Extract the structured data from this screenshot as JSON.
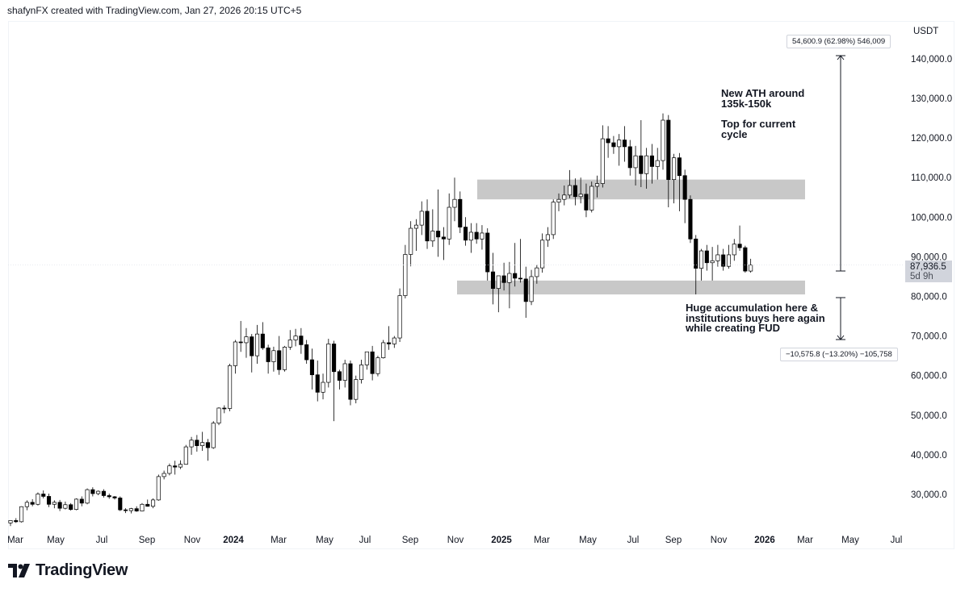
{
  "header": {
    "credit": "shafynFX created with TradingView.com, Jan 27, 2026 20:15 UTC+5"
  },
  "brand": {
    "name": "TradingView",
    "logo_icon": "tradingview-logo-icon"
  },
  "price_scale": {
    "currency": "USDT",
    "current_price": "87,936.5",
    "countdown": "5d 9h"
  },
  "annotations": {
    "ath_note": "New ATH around\n135k-150k",
    "top_note": "Top for current\ncycle",
    "accumulation_note": "Huge accumulation here &\ninstitutions buys here again\nwhile creating FUD",
    "measure_up": "54,600.9 (62.98%) 546,009",
    "measure_down": "−10,575.8 (−13.20%) −105,758"
  },
  "colors": {
    "up_body": "#ffffff",
    "down_body": "#000000",
    "wick": "#000000",
    "zone": "#c8c8c8",
    "grid": "#ffffff"
  },
  "chart_data": {
    "type": "candlestick",
    "interval": "weekly",
    "ylim": [
      22000,
      146000
    ],
    "y_ticks": [
      30000,
      40000,
      50000,
      60000,
      70000,
      80000,
      90000,
      100000,
      110000,
      120000,
      130000,
      140000
    ],
    "y_tick_labels": [
      "30,000.0",
      "40,000.0",
      "50,000.0",
      "60,000.0",
      "70,000.0",
      "80,000.0",
      "90,000.0",
      "100,000.0",
      "110,000.0",
      "120,000.0",
      "130,000.0",
      "140,000.0"
    ],
    "x_tick_labels": [
      {
        "label": "Mar",
        "bold": false
      },
      {
        "label": "May",
        "bold": false
      },
      {
        "label": "Jul",
        "bold": false
      },
      {
        "label": "Sep",
        "bold": false
      },
      {
        "label": "Nov",
        "bold": false
      },
      {
        "label": "2024",
        "bold": true
      },
      {
        "label": "Mar",
        "bold": false
      },
      {
        "label": "May",
        "bold": false
      },
      {
        "label": "Jul",
        "bold": false
      },
      {
        "label": "Sep",
        "bold": false
      },
      {
        "label": "Nov",
        "bold": false
      },
      {
        "label": "2025",
        "bold": true
      },
      {
        "label": "Mar",
        "bold": false
      },
      {
        "label": "May",
        "bold": false
      },
      {
        "label": "Jul",
        "bold": false
      },
      {
        "label": "Sep",
        "bold": false
      },
      {
        "label": "Nov",
        "bold": false
      },
      {
        "label": "2026",
        "bold": true
      },
      {
        "label": "Mar",
        "bold": false
      },
      {
        "label": "May",
        "bold": false
      },
      {
        "label": "Jul",
        "bold": false
      }
    ],
    "zones": [
      {
        "name": "resistance-zone",
        "from": 104500,
        "to": 109500
      },
      {
        "name": "support-zone",
        "from": 80500,
        "to": 84000
      }
    ],
    "candles": [
      [
        22800,
        23500,
        22000,
        23400
      ],
      [
        23400,
        24000,
        22800,
        23100
      ],
      [
        23100,
        27000,
        22900,
        26900
      ],
      [
        26900,
        28500,
        26000,
        28000
      ],
      [
        28000,
        28800,
        27000,
        27500
      ],
      [
        27500,
        30500,
        27200,
        30100
      ],
      [
        30100,
        31000,
        29000,
        29500
      ],
      [
        29500,
        30200,
        26800,
        27500
      ],
      [
        27500,
        28500,
        26500,
        28000
      ],
      [
        28000,
        28600,
        25800,
        26500
      ],
      [
        26500,
        28200,
        26200,
        27400
      ],
      [
        27400,
        27800,
        25900,
        26200
      ],
      [
        26200,
        29000,
        26000,
        28800
      ],
      [
        28800,
        29500,
        27000,
        27800
      ],
      [
        27800,
        31500,
        27500,
        31200
      ],
      [
        31200,
        31800,
        29500,
        30200
      ],
      [
        30200,
        31000,
        29800,
        30800
      ],
      [
        30800,
        31300,
        29200,
        29700
      ],
      [
        29700,
        30200,
        28900,
        29400
      ],
      [
        29400,
        29600,
        28700,
        29100
      ],
      [
        29100,
        29500,
        25800,
        26100
      ],
      [
        26100,
        26500,
        25300,
        25900
      ],
      [
        25900,
        26600,
        25200,
        26400
      ],
      [
        26400,
        27000,
        25600,
        25800
      ],
      [
        25800,
        27800,
        25700,
        27500
      ],
      [
        27500,
        28700,
        26900,
        27000
      ],
      [
        27000,
        29000,
        26500,
        28600
      ],
      [
        28600,
        35000,
        28400,
        34500
      ],
      [
        34500,
        36000,
        33800,
        35300
      ],
      [
        35300,
        37800,
        34800,
        37200
      ],
      [
        37200,
        38500,
        35000,
        36900
      ],
      [
        36900,
        38600,
        36400,
        37600
      ],
      [
        37600,
        42500,
        37500,
        42000
      ],
      [
        42000,
        44500,
        40000,
        43700
      ],
      [
        43700,
        45000,
        40800,
        42300
      ],
      [
        42300,
        45800,
        41000,
        43100
      ],
      [
        43100,
        44000,
        38500,
        41800
      ],
      [
        41800,
        48500,
        41500,
        48000
      ],
      [
        48000,
        52000,
        47500,
        51800
      ],
      [
        51800,
        52500,
        50500,
        51700
      ],
      [
        51700,
        63000,
        51000,
        62500
      ],
      [
        62500,
        69000,
        60500,
        68500
      ],
      [
        68500,
        73800,
        66000,
        68300
      ],
      [
        68300,
        72000,
        64500,
        69800
      ],
      [
        69800,
        70500,
        60800,
        65000
      ],
      [
        65000,
        72800,
        63000,
        70500
      ],
      [
        70500,
        73500,
        66500,
        67000
      ],
      [
        67000,
        67800,
        60500,
        63500
      ],
      [
        63500,
        67300,
        61000,
        66300
      ],
      [
        66300,
        70000,
        60200,
        61500
      ],
      [
        61500,
        67500,
        61000,
        67200
      ],
      [
        67200,
        71500,
        66500,
        69000
      ],
      [
        69000,
        71800,
        67400,
        70000
      ],
      [
        70000,
        72000,
        65500,
        67800
      ],
      [
        67800,
        69000,
        63000,
        64000
      ],
      [
        64000,
        66800,
        56500,
        60200
      ],
      [
        60200,
        63800,
        53500,
        55800
      ],
      [
        55800,
        60500,
        54000,
        58300
      ],
      [
        58300,
        69300,
        57000,
        68000
      ],
      [
        68000,
        68800,
        48500,
        61000
      ],
      [
        61000,
        61500,
        56500,
        58800
      ],
      [
        58800,
        64000,
        57000,
        63000
      ],
      [
        63000,
        63800,
        52500,
        54000
      ],
      [
        54000,
        60000,
        53000,
        59000
      ],
      [
        59000,
        64000,
        58000,
        62700
      ],
      [
        62700,
        66000,
        61500,
        66000
      ],
      [
        66000,
        67500,
        58800,
        60500
      ],
      [
        60500,
        65000,
        59800,
        64500
      ],
      [
        64500,
        69000,
        64300,
        68300
      ],
      [
        68300,
        72500,
        66500,
        68000
      ],
      [
        68000,
        70000,
        67000,
        69500
      ],
      [
        69500,
        82000,
        68500,
        80200
      ],
      [
        80200,
        93000,
        79500,
        90600
      ],
      [
        90600,
        99000,
        87600,
        97200
      ],
      [
        97200,
        99500,
        91500,
        98000
      ],
      [
        98000,
        104000,
        95500,
        101500
      ],
      [
        101500,
        104500,
        92000,
        94000
      ],
      [
        94000,
        102000,
        92500,
        96500
      ],
      [
        96500,
        107000,
        90000,
        95000
      ],
      [
        95000,
        97500,
        89200,
        94500
      ],
      [
        94500,
        106000,
        93000,
        102500
      ],
      [
        102500,
        110000,
        99000,
        104500
      ],
      [
        104500,
        106500,
        96000,
        97500
      ],
      [
        97500,
        100000,
        92800,
        94200
      ],
      [
        94200,
        98500,
        91000,
        96200
      ],
      [
        96200,
        98500,
        93300,
        94500
      ],
      [
        94500,
        98000,
        91800,
        96000
      ],
      [
        96000,
        97200,
        84000,
        86200
      ],
      [
        86200,
        91000,
        78000,
        82000
      ],
      [
        82000,
        85000,
        76000,
        85200
      ],
      [
        85200,
        88500,
        81500,
        83500
      ],
      [
        83500,
        88700,
        77000,
        85800
      ],
      [
        85800,
        93500,
        82500,
        84600
      ],
      [
        84600,
        94500,
        83500,
        84400
      ],
      [
        84400,
        87500,
        74600,
        78700
      ],
      [
        78700,
        86700,
        77800,
        85000
      ],
      [
        85000,
        88000,
        83200,
        87200
      ],
      [
        87200,
        95900,
        86000,
        94200
      ],
      [
        94200,
        97500,
        92500,
        95600
      ],
      [
        95600,
        104500,
        94500,
        103800
      ],
      [
        103800,
        106000,
        101500,
        104500
      ],
      [
        104500,
        108000,
        103000,
        105600
      ],
      [
        105600,
        111900,
        104800,
        108000
      ],
      [
        108000,
        109800,
        103000,
        105200
      ],
      [
        105200,
        110000,
        103500,
        105800
      ],
      [
        105800,
        108500,
        100000,
        101800
      ],
      [
        101800,
        109000,
        101200,
        107800
      ],
      [
        107800,
        110500,
        105000,
        108500
      ],
      [
        108500,
        123200,
        107500,
        119800
      ],
      [
        119800,
        123000,
        115000,
        118800
      ],
      [
        118800,
        120500,
        116000,
        117800
      ],
      [
        117800,
        121000,
        113000,
        119500
      ],
      [
        119500,
        123000,
        114000,
        117800
      ],
      [
        117800,
        119500,
        110500,
        112500
      ],
      [
        112500,
        118000,
        108000,
        115500
      ],
      [
        115500,
        124500,
        107600,
        111000
      ],
      [
        111000,
        117500,
        107200,
        115500
      ],
      [
        115500,
        118500,
        108500,
        112800
      ],
      [
        112800,
        117500,
        109500,
        114300
      ],
      [
        114300,
        126200,
        112000,
        124500
      ],
      [
        124500,
        125800,
        102500,
        109500
      ],
      [
        109500,
        116000,
        103500,
        115000
      ],
      [
        115000,
        116200,
        101500,
        110500
      ],
      [
        110500,
        112000,
        98500,
        104500
      ],
      [
        104500,
        105500,
        93500,
        94500
      ],
      [
        94500,
        95500,
        80500,
        87100
      ],
      [
        87100,
        92000,
        84000,
        91500
      ],
      [
        91500,
        93000,
        86500,
        88500
      ],
      [
        88500,
        92500,
        84000,
        89000
      ],
      [
        89000,
        93000,
        87500,
        90500
      ],
      [
        90500,
        92000,
        86500,
        87600
      ],
      [
        87600,
        93000,
        87000,
        90500
      ],
      [
        90500,
        94500,
        89000,
        93200
      ],
      [
        93200,
        97900,
        91500,
        92300
      ],
      [
        92300,
        92800,
        86000,
        86400
      ],
      [
        86400,
        89500,
        86000,
        87936.5
      ]
    ]
  }
}
